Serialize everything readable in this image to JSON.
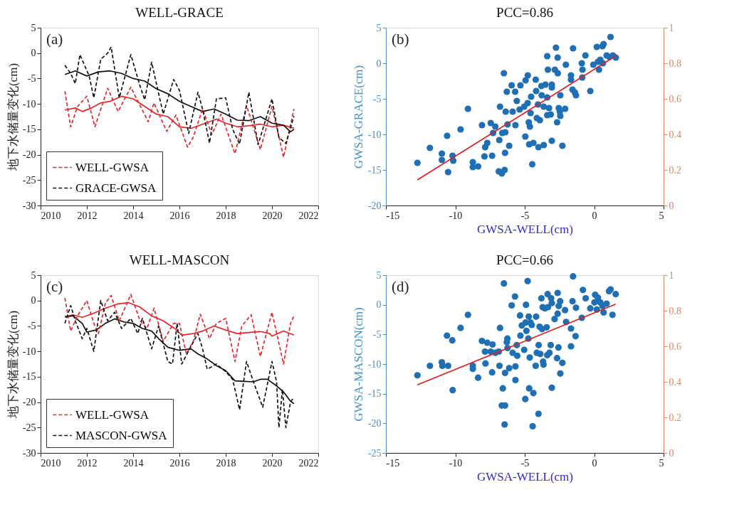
{
  "chart_data": [
    {
      "type": "line",
      "title": "WELL-GRACE",
      "ylabel": "地下水储量变化(cm)",
      "annotations": [
        "(a)"
      ],
      "xlim": [
        2010,
        2022
      ],
      "xticks": [
        2010,
        2012,
        2014,
        2016,
        2018,
        2020,
        2022
      ],
      "ylim": [
        -30,
        5
      ],
      "yticks": [
        -30,
        -25,
        -20,
        -15,
        -10,
        -5,
        0,
        5
      ],
      "legend": "bottom left",
      "series": [
        {
          "name": "WELL-GWSA",
          "color": "#e8262a",
          "line_style": "dashed",
          "x": [
            2011.05,
            2011.3,
            2011.6,
            2012.0,
            2012.35,
            2012.9,
            2013.35,
            2013.9,
            2014.65,
            2014.9,
            2015.45,
            2015.85,
            2016.35,
            2016.6,
            2017.0,
            2017.4,
            2017.8,
            2018.4,
            2018.9,
            2019.5,
            2020.0,
            2020.5,
            2020.95
          ],
          "values": [
            -7.5,
            -14.5,
            -10.5,
            -8.5,
            -14.5,
            -6.9,
            -11.5,
            -6.7,
            -13.5,
            -9.8,
            -15.4,
            -12.2,
            -18.5,
            -16.5,
            -11,
            -16,
            -12,
            -19.8,
            -10.3,
            -19,
            -10.5,
            -20.5,
            -11
          ]
        },
        {
          "name": "GRACE-GWSA",
          "color": "#111111",
          "line_style": "dashed",
          "x": [
            2011.05,
            2011.3,
            2011.5,
            2011.7,
            2012.1,
            2012.3,
            2012.6,
            2012.9,
            2013.05,
            2013.4,
            2013.9,
            2014.3,
            2014.5,
            2014.8,
            2015.3,
            2015.75,
            2016.0,
            2016.4,
            2016.8,
            2017.0,
            2017.3,
            2017.6,
            2018.0,
            2018.3,
            2018.6,
            2019.0,
            2019.4,
            2020.0,
            2020.3,
            2020.6,
            2020.95
          ],
          "values": [
            -2.4,
            -4,
            -6,
            -0.3,
            -4.5,
            -8.8,
            -1.2,
            0,
            1.2,
            -8.8,
            -0.3,
            -6.5,
            -9.2,
            -1.8,
            -12,
            -5.2,
            -7.3,
            -15.8,
            -7.7,
            -11,
            -17.7,
            -9,
            -8.8,
            -15,
            -17.9,
            -7.7,
            -18,
            -9,
            -16.6,
            -17.8,
            -12.4
          ]
        },
        {
          "color": "#e8262a",
          "line_style": "solid",
          "x": [
            2011.05,
            2011.5,
            2011.8,
            2012.2,
            2012.6,
            2013.0,
            2013.5,
            2014.0,
            2014.5,
            2015.0,
            2015.5,
            2016.0,
            2016.5,
            2017.0,
            2017.6,
            2018.0,
            2018.5,
            2019.0,
            2019.5,
            2020.0,
            2020.5,
            2020.95
          ],
          "values": [
            -11.2,
            -10.8,
            -11.5,
            -10.8,
            -9.8,
            -9.5,
            -8.5,
            -9,
            -10.5,
            -12,
            -12.5,
            -14.5,
            -14.8,
            -14,
            -13,
            -13.8,
            -14.5,
            -14.3,
            -14,
            -14.5,
            -14.2,
            -14.8
          ]
        },
        {
          "color": "#111111",
          "line_style": "solid",
          "x": [
            2011.05,
            2011.5,
            2012.0,
            2012.5,
            2013.0,
            2013.5,
            2014.0,
            2014.5,
            2015.0,
            2015.5,
            2016.0,
            2016.5,
            2017.0,
            2017.5,
            2018.0,
            2018.5,
            2019.0,
            2019.5,
            2020.0,
            2020.5,
            2020.8,
            2020.95
          ],
          "values": [
            -4.2,
            -3.5,
            -4.5,
            -3.7,
            -3.5,
            -4,
            -5,
            -5.5,
            -7,
            -8,
            -9.5,
            -10.5,
            -11.5,
            -11,
            -12,
            -13.2,
            -13.3,
            -12.5,
            -13.8,
            -14.2,
            -15.5,
            -15
          ]
        }
      ]
    },
    {
      "type": "scatter",
      "title": "PCC=0.86",
      "xlabel": "GWSA-WELL(cm)",
      "ylabel": "GWSA-GRACE(cm)",
      "annotations": [
        "(b)"
      ],
      "xlim": [
        -15,
        5
      ],
      "xticks": [
        -15,
        -10,
        -5,
        0,
        5
      ],
      "ylim": [
        -20,
        5
      ],
      "yticks": [
        -20,
        -15,
        -10,
        -5,
        0,
        5
      ],
      "y2lim": [
        0,
        1
      ],
      "y2ticks": [
        0,
        0.2,
        0.4,
        0.6,
        0.8,
        1
      ],
      "series": [
        {
          "type": "scatter",
          "color": "#1f6fb5",
          "x": [
            -12.73,
            -11.83,
            -10.97,
            -10.97,
            -10.59,
            -10.52,
            -10.2,
            -10.15,
            -9.62,
            -9.09,
            -8.74,
            -8.74,
            -8.36,
            -8.08,
            -7.9,
            -7.85,
            -7.7,
            -7.45,
            -7.35,
            -7.28,
            -7.12,
            -6.83,
            -6.78,
            -6.87,
            -6.65,
            -6.45,
            -6.5,
            -6.62,
            -6.42,
            -6.4,
            -6.37,
            -6.29,
            -6.24,
            -6.12,
            -5.94,
            -5.87,
            -5.69,
            -5.67,
            -5.57,
            -5.31,
            -5.37,
            -5.04,
            -4.94,
            -4.96,
            -4.78,
            -4.79,
            -4.71,
            -4.68,
            -4.63,
            -4.58,
            -4.54,
            -4.46,
            -4.38,
            -4.21,
            -4.18,
            -4.13,
            -4.05,
            -4.01,
            -3.91,
            -3.8,
            -3.78,
            -3.63,
            -3.63,
            -3.51,
            -3.38,
            -3.38,
            -3.38,
            -3.33,
            -3.25,
            -3.13,
            -3.05,
            -3.05,
            -3.05,
            -2.75,
            -2.83,
            -2.63,
            -2.62,
            -2.67,
            -2.55,
            -2.47,
            -2.44,
            -2.44,
            -2.29,
            -2.09,
            -2.04,
            -1.67,
            -1.67,
            -1.56,
            -1.52,
            -1.39,
            -1.31,
            -0.89,
            -0.86,
            -0.84,
            -0.63,
            -0.28,
            -0.06,
            0.19,
            0.27,
            0.35,
            0.44,
            0.6,
            0.68,
            0.63,
            0.9,
            1.1,
            1.18,
            1.35,
            1.56
          ],
          "values": [
            -14.0,
            -11.9,
            -12.7,
            -13.6,
            -10.2,
            -15.3,
            -13.0,
            -13.7,
            -9.3,
            -6.4,
            -13.9,
            -14.6,
            -14.5,
            -8.7,
            -13.1,
            -11.8,
            -11.2,
            -8.4,
            -13.0,
            -9.8,
            -8.9,
            -10.8,
            -6.1,
            -15.2,
            -15.5,
            -15.0,
            -1.4,
            -9.8,
            -12.6,
            -9.7,
            -6.8,
            -4.0,
            -8.6,
            -11.6,
            -3.1,
            -6.8,
            -4.0,
            -8.7,
            -5.3,
            -3.1,
            -6.5,
            -6.1,
            -2.4,
            -10.3,
            -1.7,
            -5.6,
            -8.3,
            -11.4,
            -8.9,
            -7.0,
            -4.7,
            -14.2,
            -11.2,
            -2.3,
            -3.9,
            -7.7,
            -5.8,
            -11.8,
            -8.0,
            -3.2,
            -4.5,
            -11.5,
            -6.1,
            -3.0,
            -4.8,
            -7.3,
            1.0,
            -0.9,
            -6.3,
            -7.2,
            -10.9,
            -3.0,
            -3.4,
            2.2,
            -0.9,
            0.8,
            -1.4,
            -8.3,
            -6.3,
            -6.8,
            -7.4,
            -4.5,
            -11.6,
            -6.4,
            -0.2,
            -1.7,
            -2.3,
            -3.7,
            2.1,
            -4.1,
            -4.5,
            0.0,
            -2.0,
            -0.9,
            1.1,
            -3.9,
            -0.2,
            2.3,
            0.2,
            -0.9,
            0.5,
            2.4,
            2.7,
            0.0,
            1.1,
            0.9,
            3.7,
            1.1,
            0.8
          ]
        },
        {
          "type": "line",
          "color": "#e02020",
          "x": [
            -12.73,
            1.6
          ],
          "values": [
            -16.4,
            1.1
          ]
        }
      ]
    },
    {
      "type": "line",
      "title": "WELL-MASCON",
      "ylabel": "地下水储量变化(cm)",
      "annotations": [
        "(c)"
      ],
      "xlim": [
        2010,
        2022
      ],
      "xticks": [
        2010,
        2012,
        2014,
        2016,
        2018,
        2020,
        2022
      ],
      "ylim": [
        -30,
        5
      ],
      "yticks": [
        -30,
        -25,
        -20,
        -15,
        -10,
        -5,
        0,
        5
      ],
      "legend": "bottom left",
      "series": [
        {
          "name": "WELL-GWSA",
          "color": "#e8262a",
          "line_style": "dashed",
          "x": [
            2011.05,
            2011.3,
            2011.6,
            2012.0,
            2012.3,
            2012.5,
            2012.8,
            2013.05,
            2013.4,
            2013.9,
            2014.3,
            2014.6,
            2014.9,
            2015.3,
            2015.75,
            2016.0,
            2016.3,
            2016.6,
            2016.9,
            2017.3,
            2017.6,
            2018.0,
            2018.4,
            2018.7,
            2019.1,
            2019.5,
            2020.0,
            2020.5,
            2020.8,
            2020.95
          ],
          "values": [
            0.5,
            -6,
            -3,
            0,
            -4.5,
            -6.5,
            -0.5,
            1,
            -4,
            1.2,
            -4,
            -5.5,
            -1.5,
            -8,
            -4.5,
            -4.5,
            -10.5,
            -8,
            -2.7,
            -7.5,
            -4.5,
            -3.5,
            -12,
            -5,
            -2.8,
            -11,
            -2.3,
            -12.5,
            -4.5,
            -3
          ]
        },
        {
          "name": "MASCON-GWSA",
          "color": "#111111",
          "line_style": "dashed",
          "x": [
            2011.05,
            2011.3,
            2011.5,
            2011.8,
            2012.0,
            2012.3,
            2012.6,
            2012.9,
            2013.2,
            2013.5,
            2013.9,
            2014.2,
            2014.4,
            2014.8,
            2015.1,
            2015.5,
            2015.7,
            2015.9,
            2016.1,
            2016.5,
            2016.8,
            2017.0,
            2017.2,
            2017.6,
            2018.0,
            2018.3,
            2018.6,
            2018.9,
            2019.2,
            2019.6,
            2020.0,
            2020.2,
            2020.3,
            2020.45,
            2020.6,
            2020.8,
            2020.95
          ],
          "values": [
            -4.5,
            -1,
            -4,
            -7.5,
            -5.5,
            -10,
            0,
            -4,
            -2.3,
            -5.5,
            -3.5,
            -6.5,
            -3.5,
            -9.5,
            -5,
            -12,
            -12.5,
            -4.5,
            -12.5,
            -9,
            -6.5,
            -9.5,
            -13.5,
            -12.5,
            -14,
            -15.5,
            -21.5,
            -12,
            -16,
            -21,
            -12,
            -16,
            -25,
            -17.5,
            -25,
            -20,
            -19
          ]
        },
        {
          "color": "#e8262a",
          "line_style": "solid",
          "x": [
            2011.05,
            2011.4,
            2011.8,
            2012.3,
            2012.8,
            2013.3,
            2013.8,
            2014.3,
            2014.8,
            2015.3,
            2015.8,
            2016.1,
            2016.6,
            2017.0,
            2017.5,
            2018.0,
            2018.5,
            2019.0,
            2019.5,
            2019.9,
            2020.0,
            2020.5,
            2020.95
          ],
          "values": [
            -3.2,
            -2.8,
            -3.3,
            -2.5,
            -1.5,
            -0.7,
            -0.4,
            -1.3,
            -3,
            -4,
            -5.5,
            -6.8,
            -6.5,
            -6,
            -5,
            -5.8,
            -6.5,
            -6.3,
            -6.1,
            -6.5,
            -7,
            -6,
            -6.8
          ]
        },
        {
          "color": "#111111",
          "line_style": "solid",
          "x": [
            2011.05,
            2011.4,
            2011.8,
            2012.0,
            2012.4,
            2012.8,
            2013.2,
            2013.6,
            2014.0,
            2014.4,
            2014.8,
            2015.1,
            2015.5,
            2016.0,
            2016.5,
            2016.8,
            2017.2,
            2017.6,
            2018.0,
            2018.4,
            2018.8,
            2019.2,
            2019.5,
            2019.8,
            2020.2,
            2020.5,
            2020.8,
            2020.95
          ],
          "values": [
            -3.2,
            -3,
            -4.5,
            -6.2,
            -5.8,
            -4.5,
            -3.6,
            -4.2,
            -4.5,
            -5.5,
            -6,
            -7.5,
            -9.2,
            -9.8,
            -9.5,
            -10.5,
            -11.5,
            -12.8,
            -13.8,
            -15.8,
            -15.9,
            -16,
            -15.5,
            -15.5,
            -16.8,
            -18,
            -19.8,
            -20.3
          ]
        }
      ]
    },
    {
      "type": "scatter",
      "title": "PCC=0.66",
      "xlabel": "GWSA-WELL(cm)",
      "ylabel": "GWSA-MASCON(cm)",
      "annotations": [
        "(d)"
      ],
      "xlim": [
        -15,
        5
      ],
      "xticks": [
        -15,
        -10,
        -5,
        0,
        5
      ],
      "ylim": [
        -25,
        5
      ],
      "yticks": [
        -25,
        -20,
        -15,
        -10,
        -5,
        0,
        5
      ],
      "y2lim": [
        0,
        1
      ],
      "y2ticks": [
        0,
        0.2,
        0.4,
        0.6,
        0.8,
        1
      ],
      "series": [
        {
          "type": "scatter",
          "color": "#1f6fb5",
          "x": [
            -12.73,
            -11.83,
            -10.97,
            -10.93,
            -10.6,
            -10.52,
            -10.22,
            -10.19,
            -9.62,
            -9.09,
            -8.74,
            -8.74,
            -8.36,
            -8.08,
            -7.86,
            -7.83,
            -7.7,
            -7.45,
            -7.35,
            -7.32,
            -7.12,
            -6.87,
            -6.78,
            -6.82,
            -6.65,
            -6.42,
            -6.5,
            -6.58,
            -6.45,
            -6.42,
            -6.29,
            -6.25,
            -6.24,
            -6.12,
            -5.94,
            -5.87,
            -5.7,
            -5.67,
            -5.67,
            -5.57,
            -5.54,
            -5.34,
            -5.31,
            -5.21,
            -5.04,
            -4.96,
            -4.94,
            -4.91,
            -4.88,
            -4.79,
            -4.74,
            -4.71,
            -4.68,
            -4.64,
            -4.58,
            -4.5,
            -4.43,
            -4.38,
            -4.21,
            -4.18,
            -4.13,
            -4.01,
            -4.0,
            -3.93,
            -3.88,
            -3.8,
            -3.75,
            -3.71,
            -3.68,
            -3.65,
            -3.55,
            -3.42,
            -3.38,
            -3.35,
            -3.33,
            -3.22,
            -3.13,
            -3.1,
            -3.05,
            -3.05,
            -2.85,
            -2.67,
            -2.63,
            -2.63,
            -2.57,
            -2.55,
            -2.45,
            -2.44,
            -2.29,
            -2.1,
            -2.02,
            -1.67,
            -1.67,
            -1.52,
            -1.56,
            -1.34,
            -1.31,
            -0.89,
            -0.81,
            -0.61,
            -0.28,
            0.02,
            0.07,
            0.19,
            0.27,
            0.44,
            0.6,
            0.68,
            0.9,
            1.07,
            1.18,
            1.32,
            1.55
          ],
          "values": [
            -11.9,
            -10.3,
            -9.7,
            -10.3,
            -5.2,
            -10.3,
            -6.0,
            -14.4,
            -3.9,
            -1.7,
            -10.3,
            -10.8,
            -12.3,
            -6.1,
            -7.9,
            -9.9,
            -6.4,
            -7.9,
            -11.4,
            -6.7,
            -8.1,
            -7.9,
            -3.9,
            -10.3,
            -17.0,
            -17.0,
            3.6,
            -14.1,
            -20.2,
            -11.5,
            -6.3,
            -5.7,
            -7.3,
            -10.7,
            -0.1,
            -8.1,
            1.4,
            -12.7,
            -10.4,
            -6.8,
            -8.6,
            -1.8,
            -5.2,
            -3.5,
            -7.6,
            -15.9,
            -3.0,
            0.0,
            -4.4,
            4.0,
            -5.7,
            -2.0,
            -14.1,
            -8.9,
            -3.0,
            -3.4,
            -20.5,
            -14.9,
            -10.3,
            -2.0,
            -8.1,
            -18.4,
            -6.8,
            -3.7,
            -8.3,
            1.1,
            -4.1,
            -0.4,
            -9.6,
            -10.1,
            -0.6,
            -3.8,
            -8.5,
            1.8,
            -0.4,
            -8.1,
            -6.8,
            1.1,
            -14.0,
            0.3,
            -2.4,
            -9.0,
            2.0,
            -1.5,
            -7.2,
            -0.2,
            0.6,
            -11.6,
            -9.8,
            -0.9,
            -2.9,
            -7.0,
            -4.0,
            4.8,
            0.6,
            -5.3,
            -0.5,
            -2.2,
            2.5,
            1.1,
            -0.6,
            0.4,
            1.7,
            -0.8,
            1.2,
            0.4,
            -0.2,
            -1.3,
            0.2,
            2.3,
            2.6,
            -1.7,
            1.8
          ]
        },
        {
          "type": "line",
          "color": "#e02020",
          "x": [
            -12.73,
            1.55
          ],
          "values": [
            -13.5,
            0.1
          ]
        }
      ]
    }
  ]
}
